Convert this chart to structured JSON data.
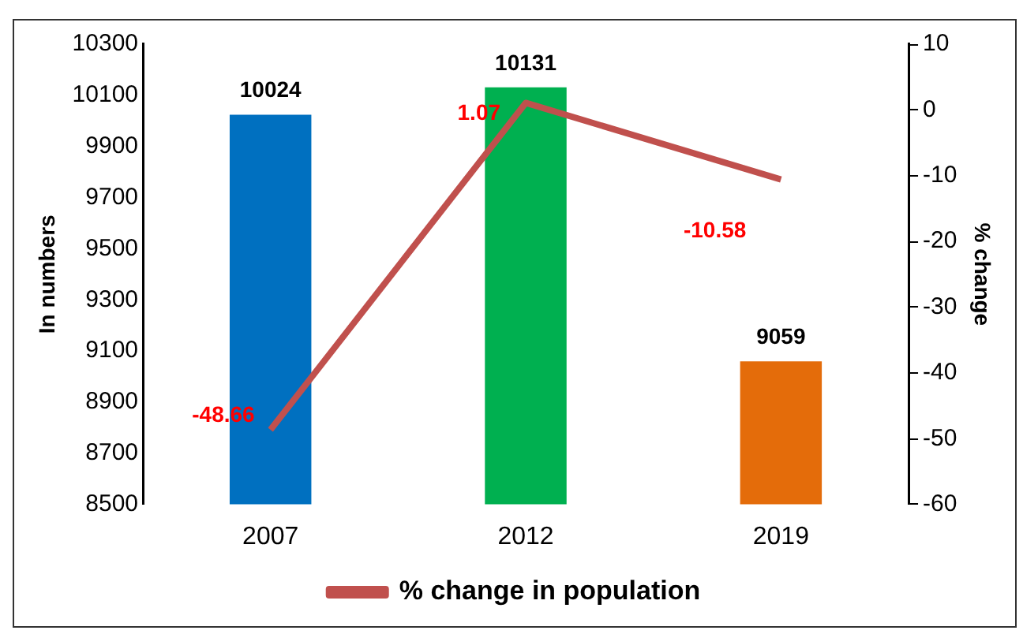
{
  "chart_data": {
    "type": "bar",
    "categories": [
      "2007",
      "2012",
      "2019"
    ],
    "ylabel": "In numbers",
    "y2label": "% change",
    "ylim": [
      8500,
      10300
    ],
    "yticks": [
      8500,
      8700,
      8900,
      9100,
      9300,
      9500,
      9700,
      9900,
      10100,
      10300
    ],
    "y2lim": [
      -60,
      10
    ],
    "y2ticks": [
      -60,
      -50,
      -40,
      -30,
      -20,
      -10,
      0,
      10
    ],
    "series": [
      {
        "colors": [
          "#0070c0",
          "#00b050",
          "#e46c0a"
        ],
        "values": [
          10024,
          10131,
          9059
        ]
      },
      {
        "type": "line",
        "name": "% change in population",
        "color": "#c0504d",
        "axis": "y2",
        "values": [
          -48.66,
          1.07,
          -10.58
        ]
      }
    ],
    "data_labels": true,
    "grid": false,
    "legend": "bottom",
    "marker": "none"
  }
}
